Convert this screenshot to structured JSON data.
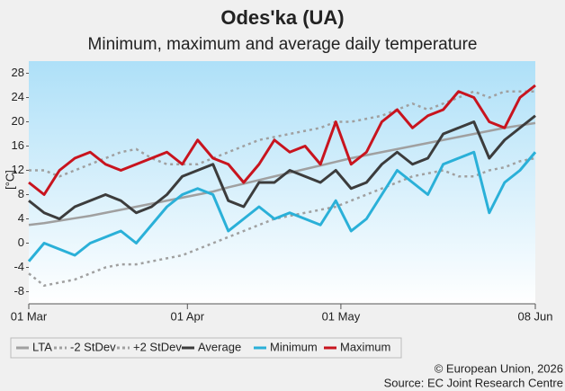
{
  "chart_data": {
    "type": "line",
    "title": "Odes'ka (UA)",
    "subtitle": "Minimum, maximum and average daily temperature",
    "y_label": "[°C]",
    "x": [
      0,
      3,
      6,
      9,
      12,
      15,
      18,
      21,
      24,
      27,
      30,
      33,
      36,
      39,
      42,
      45,
      48,
      51,
      54,
      57,
      60,
      63,
      66,
      69,
      72,
      75,
      78,
      81,
      84,
      87,
      90,
      93,
      96,
      99
    ],
    "xlim": [
      0,
      99
    ],
    "xticks": [
      {
        "value": 0,
        "label": "01 Mar"
      },
      {
        "value": 31,
        "label": "01 Apr"
      },
      {
        "value": 61,
        "label": "01 May"
      },
      {
        "value": 99,
        "label": "08 Jun"
      }
    ],
    "ylim": [
      -10,
      30
    ],
    "yticks": [
      -8,
      -4,
      0,
      4,
      8,
      12,
      16,
      20,
      24,
      28
    ],
    "series": [
      {
        "name": "LTA",
        "color": "#a0a0a0",
        "style": "solid",
        "values": [
          3,
          3.3,
          3.7,
          4.1,
          4.5,
          5,
          5.5,
          6,
          6.5,
          7,
          7.5,
          8,
          8.5,
          9.2,
          9.8,
          10.4,
          11,
          11.6,
          12.2,
          12.8,
          13.4,
          14,
          14.5,
          15,
          15.5,
          16,
          16.5,
          17,
          17.5,
          18,
          18.5,
          19,
          19.4,
          19.8
        ]
      },
      {
        "name": "-2 StDev",
        "color": "#a0a0a0",
        "style": "dotted",
        "values": [
          -5,
          -7,
          -6.5,
          -6,
          -5,
          -4,
          -3.5,
          -3.5,
          -3,
          -2.5,
          -2,
          -1,
          0,
          1,
          2,
          3,
          4,
          4.5,
          5,
          5.5,
          6,
          7,
          8,
          9,
          10,
          11,
          11.5,
          12,
          11,
          11,
          12,
          12.5,
          13.5,
          14
        ]
      },
      {
        "name": "+2 StDev",
        "color": "#a0a0a0",
        "style": "dotted",
        "values": [
          12,
          12,
          11,
          12,
          13,
          14,
          15,
          15.5,
          14,
          13,
          13,
          13,
          14,
          15,
          16,
          17,
          17.5,
          18,
          18.5,
          19,
          20,
          20,
          20.5,
          21,
          22,
          23,
          22,
          23,
          24,
          25,
          24,
          25,
          25,
          25
        ]
      },
      {
        "name": "Average",
        "color": "#3c3c3c",
        "style": "solid",
        "values": [
          7,
          5,
          4,
          6,
          7,
          8,
          7,
          5,
          6,
          8,
          11,
          12,
          13,
          7,
          6,
          10,
          10,
          12,
          11,
          10,
          12,
          9,
          10,
          13,
          15,
          13,
          14,
          18,
          19,
          20,
          14,
          17,
          19,
          21
        ]
      },
      {
        "name": "Minimum",
        "color": "#2ab0d8",
        "style": "solid",
        "values": [
          -3,
          0,
          -1,
          -2,
          0,
          1,
          2,
          0,
          3,
          6,
          8,
          9,
          8,
          2,
          4,
          6,
          4,
          5,
          4,
          3,
          7,
          2,
          4,
          8,
          12,
          10,
          8,
          13,
          14,
          15,
          5,
          10,
          12,
          15
        ]
      },
      {
        "name": "Maximum",
        "color": "#c8141e",
        "style": "solid",
        "values": [
          10,
          8,
          12,
          14,
          15,
          13,
          12,
          13,
          14,
          15,
          13,
          17,
          14,
          13,
          10,
          13,
          17,
          15,
          16,
          13,
          20,
          13,
          15,
          20,
          22,
          19,
          21,
          22,
          25,
          24,
          20,
          19,
          24,
          26
        ]
      }
    ],
    "notes": [
      "© European Union, 2026",
      "Source: EC Joint Research Centre"
    ]
  }
}
